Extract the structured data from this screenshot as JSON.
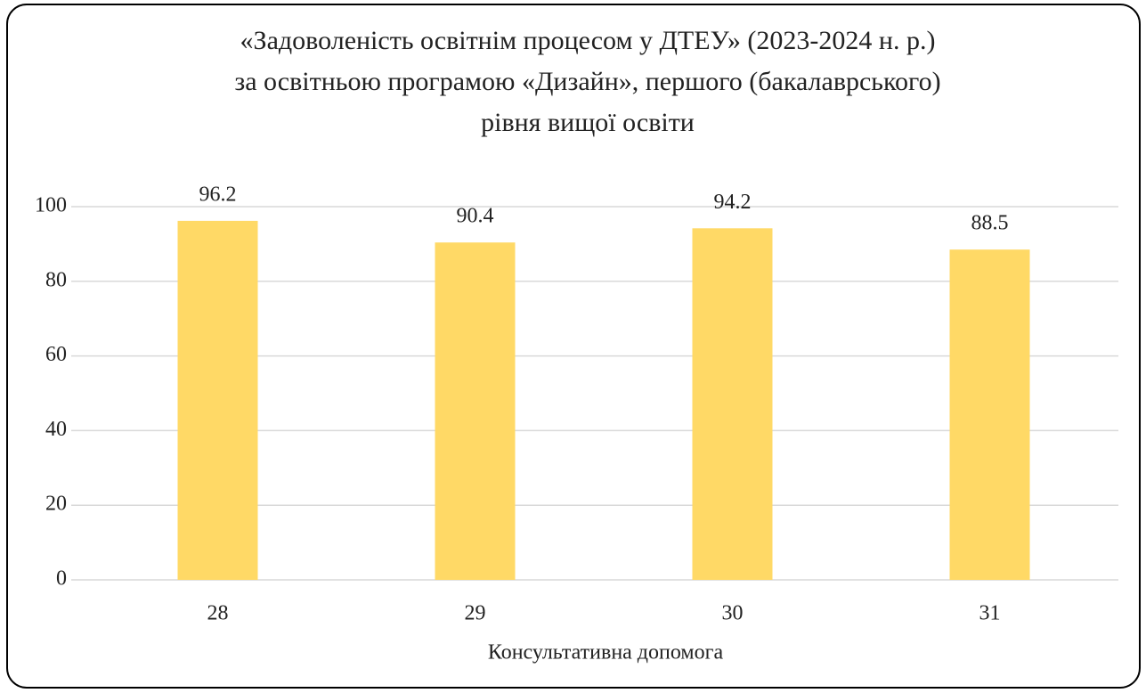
{
  "chart_data": {
    "type": "bar",
    "title": [
      "«Задоволеність освітнім процесом у ДТЕУ» (2023-2024 н. р.)",
      "за освітньою програмою «Дизайн», першого (бакалаврського)",
      "рівня вищої освіти"
    ],
    "x_label": "Консультативна допомога",
    "categories": [
      "28",
      "29",
      "30",
      "31"
    ],
    "values": [
      96.2,
      90.4,
      94.2,
      88.5
    ],
    "color": "#ffd966",
    "ylim": [
      0,
      100
    ],
    "yticks": [
      0,
      20,
      40,
      60,
      80,
      100
    ],
    "grid": true
  }
}
